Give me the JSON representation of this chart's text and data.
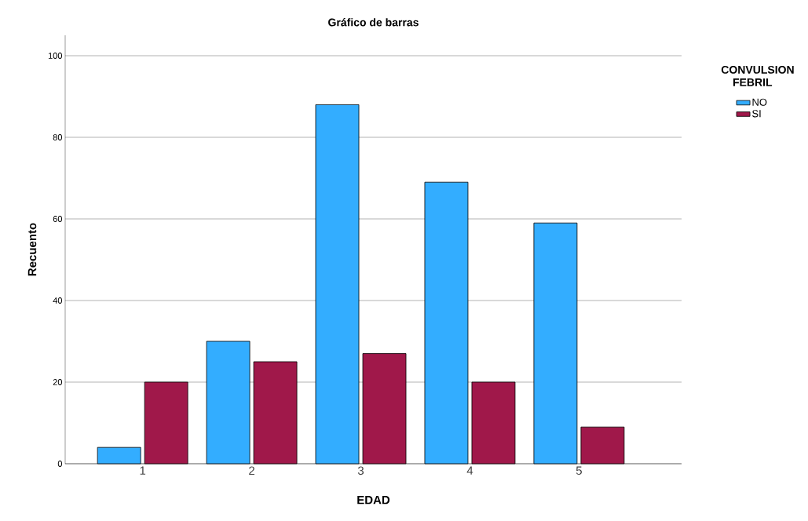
{
  "chart_data": {
    "type": "bar",
    "title": "Gráfico de barras",
    "xlabel": "EDAD",
    "ylabel": "Recuento",
    "legend_title": "CONVULSION FEBRIL",
    "categories": [
      "1",
      "2",
      "3",
      "4",
      "5"
    ],
    "series": [
      {
        "name": "NO",
        "color": "#33adff",
        "values": [
          4,
          30,
          88,
          69,
          59
        ]
      },
      {
        "name": "SI",
        "color": "#a0184a",
        "values": [
          20,
          25,
          27,
          20,
          9
        ]
      }
    ],
    "ylim": [
      0,
      105
    ],
    "yticks": [
      0,
      20,
      40,
      60,
      80,
      100
    ],
    "grid": "y",
    "legend": "right"
  }
}
